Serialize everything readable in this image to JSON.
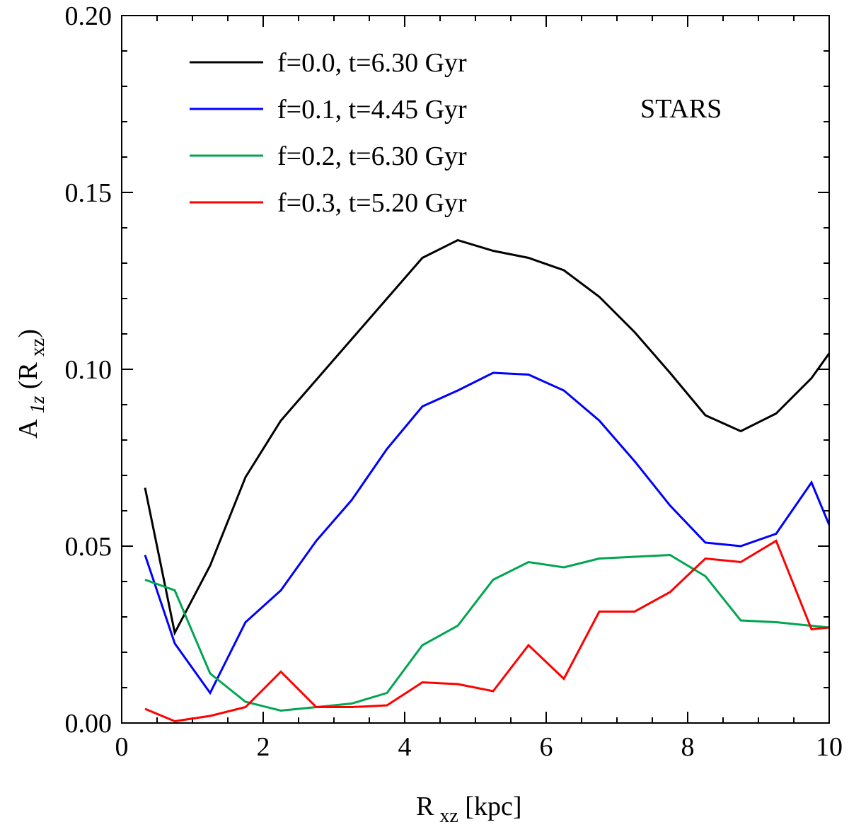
{
  "chart_data": {
    "type": "line",
    "title": "",
    "xlabel": {
      "main": "R",
      "sub": "xz",
      "rest": " [kpc]"
    },
    "ylabel": {
      "main": "A",
      "sub": "1z",
      "rest": " (R",
      "sub2": "xz",
      "close": ")"
    },
    "xlim": [
      0,
      10
    ],
    "ylim": [
      0,
      0.2
    ],
    "xticks": [
      0,
      2,
      4,
      6,
      8,
      10
    ],
    "xtick_labels": [
      "0",
      "2",
      "4",
      "6",
      "8",
      "10"
    ],
    "yticks": [
      0,
      0.05,
      0.1,
      0.15,
      0.2
    ],
    "ytick_labels": [
      "0.00",
      "0.05",
      "0.10",
      "0.15",
      "0.20"
    ],
    "x_minor_step": 0.5,
    "y_minor_step": 0.01,
    "annotation": "STARS",
    "legend_position": "top-left",
    "x": [
      0.33,
      0.75,
      1.25,
      1.75,
      2.25,
      2.75,
      3.25,
      3.75,
      4.25,
      4.75,
      5.25,
      5.75,
      6.25,
      6.75,
      7.25,
      7.75,
      8.25,
      8.75,
      9.25,
      9.75,
      10.0
    ],
    "series": [
      {
        "name": "f=0.0, t=6.30 Gyr",
        "color": "#000000",
        "values": [
          0.0665,
          0.0255,
          0.0445,
          0.0695,
          0.0855,
          0.097,
          0.1085,
          0.12,
          0.1315,
          0.1365,
          0.1335,
          0.1315,
          0.128,
          0.1205,
          0.1105,
          0.099,
          0.087,
          0.0825,
          0.0875,
          0.0975,
          0.1045
        ]
      },
      {
        "name": "f=0.1, t=4.45 Gyr",
        "color": "#0000ff",
        "values": [
          0.0475,
          0.0225,
          0.0085,
          0.0285,
          0.0375,
          0.0515,
          0.063,
          0.0775,
          0.0895,
          0.094,
          0.099,
          0.0985,
          0.094,
          0.0855,
          0.074,
          0.0615,
          0.051,
          0.05,
          0.0535,
          0.068,
          0.056
        ]
      },
      {
        "name": "f=0.2, t=6.30 Gyr",
        "color": "#00a550",
        "values": [
          0.0405,
          0.0375,
          0.014,
          0.006,
          0.0035,
          0.0045,
          0.0055,
          0.0085,
          0.022,
          0.0275,
          0.0405,
          0.0455,
          0.044,
          0.0465,
          0.047,
          0.0475,
          0.0415,
          0.029,
          0.0285,
          0.0275,
          0.027
        ]
      },
      {
        "name": "f=0.3, t=5.20 Gyr",
        "color": "#ff0000",
        "values": [
          0.004,
          0.0005,
          0.002,
          0.0045,
          0.0145,
          0.0045,
          0.0045,
          0.005,
          0.0115,
          0.011,
          0.009,
          0.022,
          0.0125,
          0.0315,
          0.0315,
          0.037,
          0.0465,
          0.0455,
          0.0515,
          0.0265,
          0.027
        ]
      }
    ]
  }
}
